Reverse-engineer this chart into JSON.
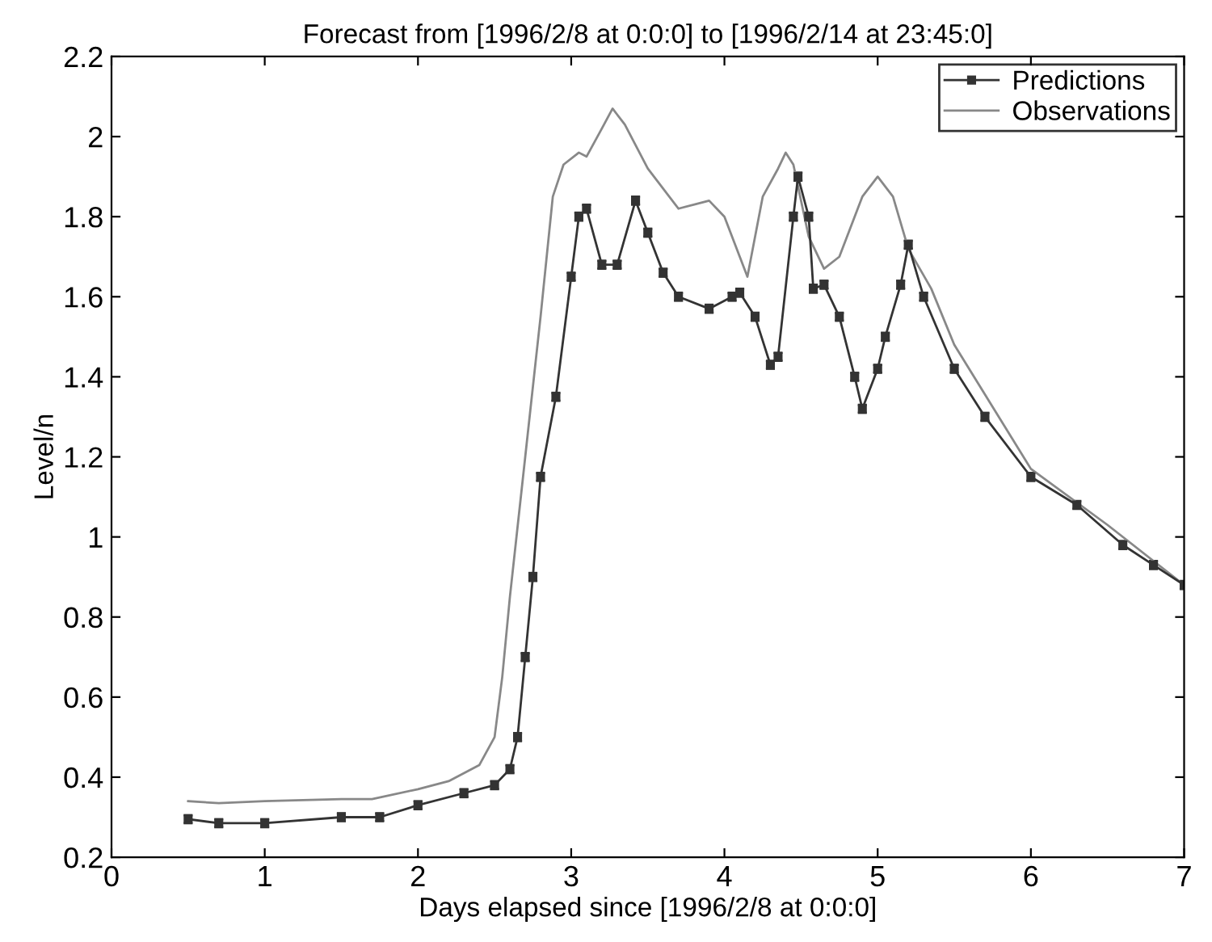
{
  "chart_data": {
    "type": "line",
    "title": "Forecast from [1996/2/8 at 0:0:0] to [1996/2/14 at 23:45:0]",
    "xlabel": "Days elapsed since [1996/2/8 at 0:0:0]",
    "ylabel": "Level/n",
    "xlim": [
      0,
      7
    ],
    "ylim": [
      0.2,
      2.2
    ],
    "xticks": [
      0,
      1,
      2,
      3,
      4,
      5,
      6,
      7
    ],
    "yticks": [
      0.2,
      0.4,
      0.6,
      0.8,
      1,
      1.2,
      1.4,
      1.6,
      1.8,
      2,
      2.2
    ],
    "grid": false,
    "legend": "top right",
    "series": [
      {
        "name": "Predictions",
        "color": "#333333",
        "marker": "square",
        "x": [
          0.5,
          0.7,
          1.0,
          1.5,
          1.75,
          2.0,
          2.3,
          2.5,
          2.6,
          2.65,
          2.7,
          2.75,
          2.8,
          2.9,
          3.0,
          3.05,
          3.1,
          3.2,
          3.3,
          3.42,
          3.5,
          3.6,
          3.7,
          3.9,
          4.05,
          4.1,
          4.2,
          4.3,
          4.35,
          4.45,
          4.48,
          4.55,
          4.58,
          4.65,
          4.75,
          4.85,
          4.9,
          5.0,
          5.05,
          5.15,
          5.2,
          5.3,
          5.5,
          5.7,
          6.0,
          6.3,
          6.6,
          6.8,
          7.0
        ],
        "values": [
          0.295,
          0.285,
          0.285,
          0.3,
          0.3,
          0.33,
          0.36,
          0.38,
          0.42,
          0.5,
          0.7,
          0.9,
          1.15,
          1.35,
          1.65,
          1.8,
          1.82,
          1.68,
          1.68,
          1.84,
          1.76,
          1.66,
          1.6,
          1.57,
          1.6,
          1.61,
          1.55,
          1.43,
          1.45,
          1.8,
          1.9,
          1.8,
          1.62,
          1.63,
          1.55,
          1.4,
          1.32,
          1.42,
          1.5,
          1.63,
          1.73,
          1.6,
          1.42,
          1.3,
          1.15,
          1.08,
          0.98,
          0.93,
          0.88
        ],
        "errors": [
          0.01,
          0.01,
          0.01,
          0.01,
          0.01,
          0.01,
          0.01,
          0.01,
          0.01,
          0.01,
          0.01,
          0.01,
          0.01,
          0.01,
          0.01,
          0.01,
          0.01,
          0.01,
          0.01,
          0.01,
          0.01,
          0.01,
          0.01,
          0.01,
          0.01,
          0.01,
          0.01,
          0.01,
          0.01,
          0.01,
          0.01,
          0.01,
          0.01,
          0.01,
          0.01,
          0.01,
          0.01,
          0.01,
          0.01,
          0.01,
          0.01,
          0.01,
          0.01,
          0.01,
          0.01,
          0.01,
          0.01,
          0.01,
          0.01
        ]
      },
      {
        "name": "Observations",
        "color": "#888888",
        "marker": "none",
        "x": [
          0.5,
          0.7,
          1.0,
          1.5,
          1.7,
          2.0,
          2.2,
          2.4,
          2.5,
          2.55,
          2.6,
          2.7,
          2.8,
          2.88,
          2.95,
          3.05,
          3.1,
          3.2,
          3.27,
          3.35,
          3.5,
          3.7,
          3.9,
          4.0,
          4.1,
          4.15,
          4.25,
          4.35,
          4.4,
          4.45,
          4.55,
          4.65,
          4.75,
          4.9,
          5.0,
          5.1,
          5.2,
          5.35,
          5.5,
          6.0,
          6.5,
          7.0
        ],
        "values": [
          0.34,
          0.335,
          0.34,
          0.345,
          0.345,
          0.37,
          0.39,
          0.43,
          0.5,
          0.65,
          0.85,
          1.2,
          1.55,
          1.85,
          1.93,
          1.96,
          1.95,
          2.02,
          2.07,
          2.03,
          1.92,
          1.82,
          1.84,
          1.8,
          1.7,
          1.65,
          1.85,
          1.92,
          1.96,
          1.93,
          1.75,
          1.67,
          1.7,
          1.85,
          1.9,
          1.85,
          1.72,
          1.62,
          1.48,
          1.17,
          1.03,
          0.88
        ]
      }
    ]
  }
}
